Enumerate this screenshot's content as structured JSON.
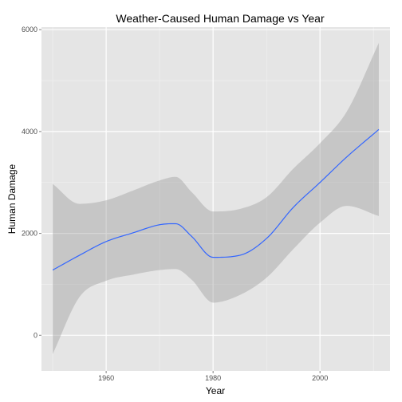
{
  "chart_data": {
    "type": "line",
    "title": "Weather-Caused Human Damage vs Year",
    "xlabel": "Year",
    "ylabel": "Human Damage",
    "xlim": [
      1947.9,
      2013.1
    ],
    "ylim": [
      -700,
      6050
    ],
    "x_ticks": [
      1960,
      1980,
      2000
    ],
    "y_ticks": [
      0,
      2000,
      4000,
      6000
    ],
    "grid": true,
    "legend": "none",
    "series": [
      {
        "type": "smooth",
        "x": [
          1950,
          1955,
          1960,
          1965,
          1970,
          1973,
          1976,
          1980,
          1985,
          1990,
          1995,
          2000,
          2005,
          2011
        ],
        "y": [
          1280,
          1570,
          1840,
          2010,
          2170,
          2190,
          1940,
          1530,
          1570,
          1900,
          2510,
          3000,
          3500,
          4040
        ],
        "lower": [
          -370,
          750,
          1070,
          1190,
          1280,
          1300,
          1090,
          640,
          790,
          1130,
          1690,
          2210,
          2540,
          2340
        ],
        "upper": [
          2970,
          2580,
          2650,
          2840,
          3040,
          3110,
          2810,
          2430,
          2480,
          2710,
          3270,
          3770,
          4390,
          5740
        ]
      }
    ],
    "colors": {
      "panel": "#e5e5e5",
      "grid_major": "#ffffff",
      "grid_minor": "#f2f2f2",
      "line": "#3366ff",
      "ribbon": "#999999"
    }
  }
}
